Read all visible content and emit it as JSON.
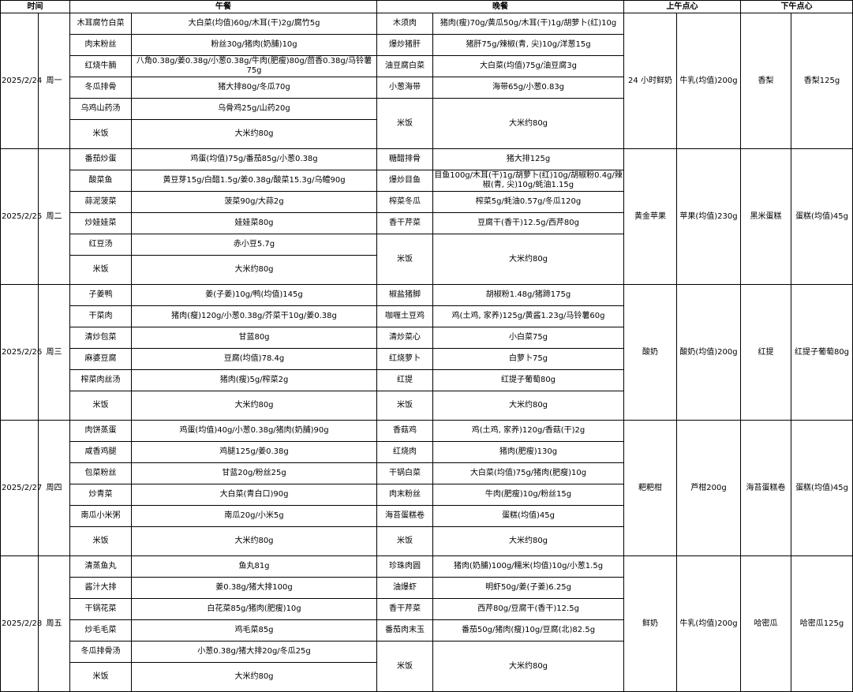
{
  "headers": {
    "time": "时间",
    "lunch": "午餐",
    "dinner": "晚餐",
    "am_snack": "上午点心",
    "pm_snack": "下午点心"
  },
  "days": [
    {
      "date": "2025/2/24",
      "weekday": "周一",
      "lunch": [
        {
          "dish": "木耳腐竹白菜",
          "ingredients": "大白菜(均值)60g/木耳(干)2g/腐竹5g"
        },
        {
          "dish": "肉末粉丝",
          "ingredients": "粉丝30g/猪肉(奶脯)10g"
        },
        {
          "dish": "红烧牛腩",
          "ingredients": "八角0.38g/姜0.38g/小葱0.38g/牛肉(肥瘦)80g/茴香0.38g/马铃薯75g"
        },
        {
          "dish": "冬瓜排骨",
          "ingredients": "猪大排80g/冬瓜70g"
        },
        {
          "dish": "乌鸡山药汤",
          "ingredients": "乌骨鸡25g/山药20g"
        },
        {
          "dish": "米饭",
          "ingredients": "大米约80g"
        }
      ],
      "dinner": [
        {
          "dish": "木须肉",
          "ingredients": "猪肉(瘦)70g/黄瓜50g/木耳(干)1g/胡萝卜(红)10g"
        },
        {
          "dish": "爆炒猪肝",
          "ingredients": "猪肝75g/辣椒(青, 尖)10g/洋葱15g"
        },
        {
          "dish": "油豆腐白菜",
          "ingredients": "大白菜(均值)75g/油豆腐3g"
        },
        {
          "dish": "小葱海带",
          "ingredients": "海带65g/小葱0.83g"
        },
        {
          "dish": "米饭",
          "ingredients": "大米约80g"
        }
      ],
      "am_snack": {
        "name": "24 小时鲜奶",
        "amount": "牛乳(均值)200g"
      },
      "pm_snack": {
        "name": "香梨",
        "amount": "香梨125g"
      }
    },
    {
      "date": "2025/2/25",
      "weekday": "周二",
      "lunch": [
        {
          "dish": "番茄炒蛋",
          "ingredients": "鸡蛋(均值)75g/番茄85g/小葱0.38g"
        },
        {
          "dish": "酸菜鱼",
          "ingredients": "黄豆芽15g/白醋1.5g/姜0.38g/酸菜15.3g/乌鳢90g"
        },
        {
          "dish": "蒜泥菠菜",
          "ingredients": "菠菜90g/大蒜2g"
        },
        {
          "dish": "炒娃娃菜",
          "ingredients": "娃娃菜80g"
        },
        {
          "dish": "红豆汤",
          "ingredients": "赤小豆5.7g"
        },
        {
          "dish": "米饭",
          "ingredients": "大米约80g"
        }
      ],
      "dinner": [
        {
          "dish": "糖醋排骨",
          "ingredients": "猪大排125g"
        },
        {
          "dish": "爆炒目鱼",
          "ingredients": "目鱼100g/木耳(干)1g/胡萝卜(红)10g/胡椒粉0.4g/辣椒(青, 尖)10g/蚝油1.15g"
        },
        {
          "dish": "榨菜冬瓜",
          "ingredients": "榨菜5g/蚝油0.57g/冬瓜120g"
        },
        {
          "dish": "香干芹菜",
          "ingredients": "豆腐干(香干)12.5g/西芹80g"
        },
        {
          "dish": "米饭",
          "ingredients": "大米约80g"
        }
      ],
      "am_snack": {
        "name": "黄金苹果",
        "amount": "苹果(均值)230g"
      },
      "pm_snack": {
        "name": "黑米蛋糕",
        "amount": "蛋糕(均值)45g"
      }
    },
    {
      "date": "2025/2/26",
      "weekday": "周三",
      "lunch": [
        {
          "dish": "子姜鸭",
          "ingredients": "姜(子姜)10g/鸭(均值)145g"
        },
        {
          "dish": "干菜肉",
          "ingredients": "猪肉(瘦)120g/小葱0.38g/芥菜干10g/姜0.38g"
        },
        {
          "dish": "清炒包菜",
          "ingredients": "甘蓝80g"
        },
        {
          "dish": "麻婆豆腐",
          "ingredients": "豆腐(均值)78.4g"
        },
        {
          "dish": "榨菜肉丝汤",
          "ingredients": "猪肉(瘦)5g/榨菜2g"
        },
        {
          "dish": "米饭",
          "ingredients": "大米约80g"
        }
      ],
      "dinner": [
        {
          "dish": "椒盐猪脚",
          "ingredients": "胡椒粉1.48g/猪蹄175g"
        },
        {
          "dish": "咖喱土豆鸡",
          "ingredients": "鸡(土鸡, 家养)125g/黄酱1.23g/马铃薯60g"
        },
        {
          "dish": "清炒菜心",
          "ingredients": "小白菜75g"
        },
        {
          "dish": "红烧萝卜",
          "ingredients": "白萝卜75g"
        },
        {
          "dish": "红提",
          "ingredients": "红提子葡萄80g"
        },
        {
          "dish": "米饭",
          "ingredients": "大米约80g"
        }
      ],
      "am_snack": {
        "name": "酸奶",
        "amount": "酸奶(均值)200g"
      },
      "pm_snack": {
        "name": "红提",
        "amount": "红提子葡萄80g"
      }
    },
    {
      "date": "2025/2/27",
      "weekday": "周四",
      "lunch": [
        {
          "dish": "肉饼蒸蛋",
          "ingredients": "鸡蛋(均值)40g/小葱0.38g/猪肉(奶脯)90g"
        },
        {
          "dish": "咸香鸡腿",
          "ingredients": "鸡腿125g/姜0.38g"
        },
        {
          "dish": "包菜粉丝",
          "ingredients": "甘蓝20g/粉丝25g"
        },
        {
          "dish": "炒青菜",
          "ingredients": "大白菜(青白口)90g"
        },
        {
          "dish": "南瓜小米粥",
          "ingredients": "南瓜20g/小米5g"
        },
        {
          "dish": "米饭",
          "ingredients": "大米约80g"
        }
      ],
      "dinner": [
        {
          "dish": "香菇鸡",
          "ingredients": "鸡(土鸡, 家养)120g/香菇(干)2g"
        },
        {
          "dish": "红烧肉",
          "ingredients": "猪肉(肥瘦)130g"
        },
        {
          "dish": "干锅白菜",
          "ingredients": "大白菜(均值)75g/猪肉(肥瘦)10g"
        },
        {
          "dish": "肉末粉丝",
          "ingredients": "牛肉(肥瘦)10g/粉丝15g"
        },
        {
          "dish": "海苔蛋糕卷",
          "ingredients": "蛋糕(均值)45g"
        },
        {
          "dish": "米饭",
          "ingredients": "大米约80g"
        }
      ],
      "am_snack": {
        "name": "粑粑柑",
        "amount": "芦柑200g"
      },
      "pm_snack": {
        "name": "海苔蛋糕卷",
        "amount": "蛋糕(均值)45g"
      }
    },
    {
      "date": "2025/2/28",
      "weekday": "周五",
      "lunch": [
        {
          "dish": "清蒸鱼丸",
          "ingredients": "鱼丸81g"
        },
        {
          "dish": "酱汁大排",
          "ingredients": "姜0.38g/猪大排100g"
        },
        {
          "dish": "干锅花菜",
          "ingredients": "白花菜85g/猪肉(肥瘦)10g"
        },
        {
          "dish": "炒毛毛菜",
          "ingredients": "鸡毛菜85g"
        },
        {
          "dish": "冬瓜排骨汤",
          "ingredients": "小葱0.38g/猪大排20g/冬瓜25g"
        },
        {
          "dish": "米饭",
          "ingredients": "大米约80g"
        }
      ],
      "dinner": [
        {
          "dish": "珍珠肉圆",
          "ingredients": "猪肉(奶脯)100g/糯米(均值)10g/小葱1.5g"
        },
        {
          "dish": "油爆虾",
          "ingredients": "明虾50g/姜(子姜)6.25g"
        },
        {
          "dish": "香干芹菜",
          "ingredients": "西芹80g/豆腐干(香干)12.5g"
        },
        {
          "dish": "番茄肉末玉",
          "ingredients": "番茄50g/猪肉(瘦)10g/豆腐(北)82.5g"
        },
        {
          "dish": "米饭",
          "ingredients": "大米约80g"
        }
      ],
      "am_snack": {
        "name": "鲜奶",
        "amount": "牛乳(均值)200g"
      },
      "pm_snack": {
        "name": "哈密瓜",
        "amount": "哈密瓜125g"
      }
    }
  ]
}
